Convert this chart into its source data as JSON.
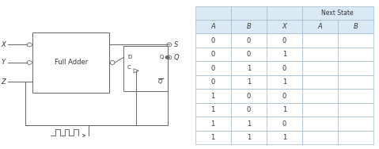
{
  "table_headers": [
    "A",
    "B",
    "X",
    "A",
    "B"
  ],
  "table_data": [
    [
      "0",
      "0",
      "0",
      "",
      ""
    ],
    [
      "0",
      "0",
      "1",
      "",
      ""
    ],
    [
      "0",
      "1",
      "0",
      "",
      ""
    ],
    [
      "0",
      "1",
      "1",
      "",
      ""
    ],
    [
      "1",
      "0",
      "0",
      "",
      ""
    ],
    [
      "1",
      "0",
      "1",
      "",
      ""
    ],
    [
      "1",
      "1",
      "0",
      "",
      ""
    ],
    [
      "1",
      "1",
      "1",
      "",
      ""
    ]
  ],
  "next_state_label": "Next State",
  "header_bg": "#daeaf5",
  "cell_bg": "#ffffff",
  "border_color": "#a0b8cc",
  "text_color": "#333333",
  "full_adder_text": "Full Adder",
  "circuit_bg": "#ffffff",
  "ec": "#666666",
  "lw": 0.7
}
